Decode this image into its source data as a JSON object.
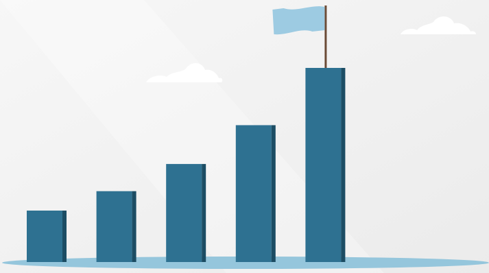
{
  "palette": {
    "background_light": "#f7f7f7",
    "background_mid": "#ebebeb",
    "bar_front": "#2e7191",
    "bar_side": "#1c4d64",
    "ground": "#95c6dc",
    "flag": "#9dcbe2",
    "pole": "#6b4a35",
    "cloud": "#ffffff"
  },
  "bars": [
    {
      "level": 0.265
    },
    {
      "level": 0.365
    },
    {
      "level": 0.505
    },
    {
      "level": 0.705
    },
    {
      "level": 1.0
    }
  ],
  "flag_on_bar": 4,
  "icons": {
    "flag": "flag-icon",
    "cloud": "cloud-icon"
  }
}
